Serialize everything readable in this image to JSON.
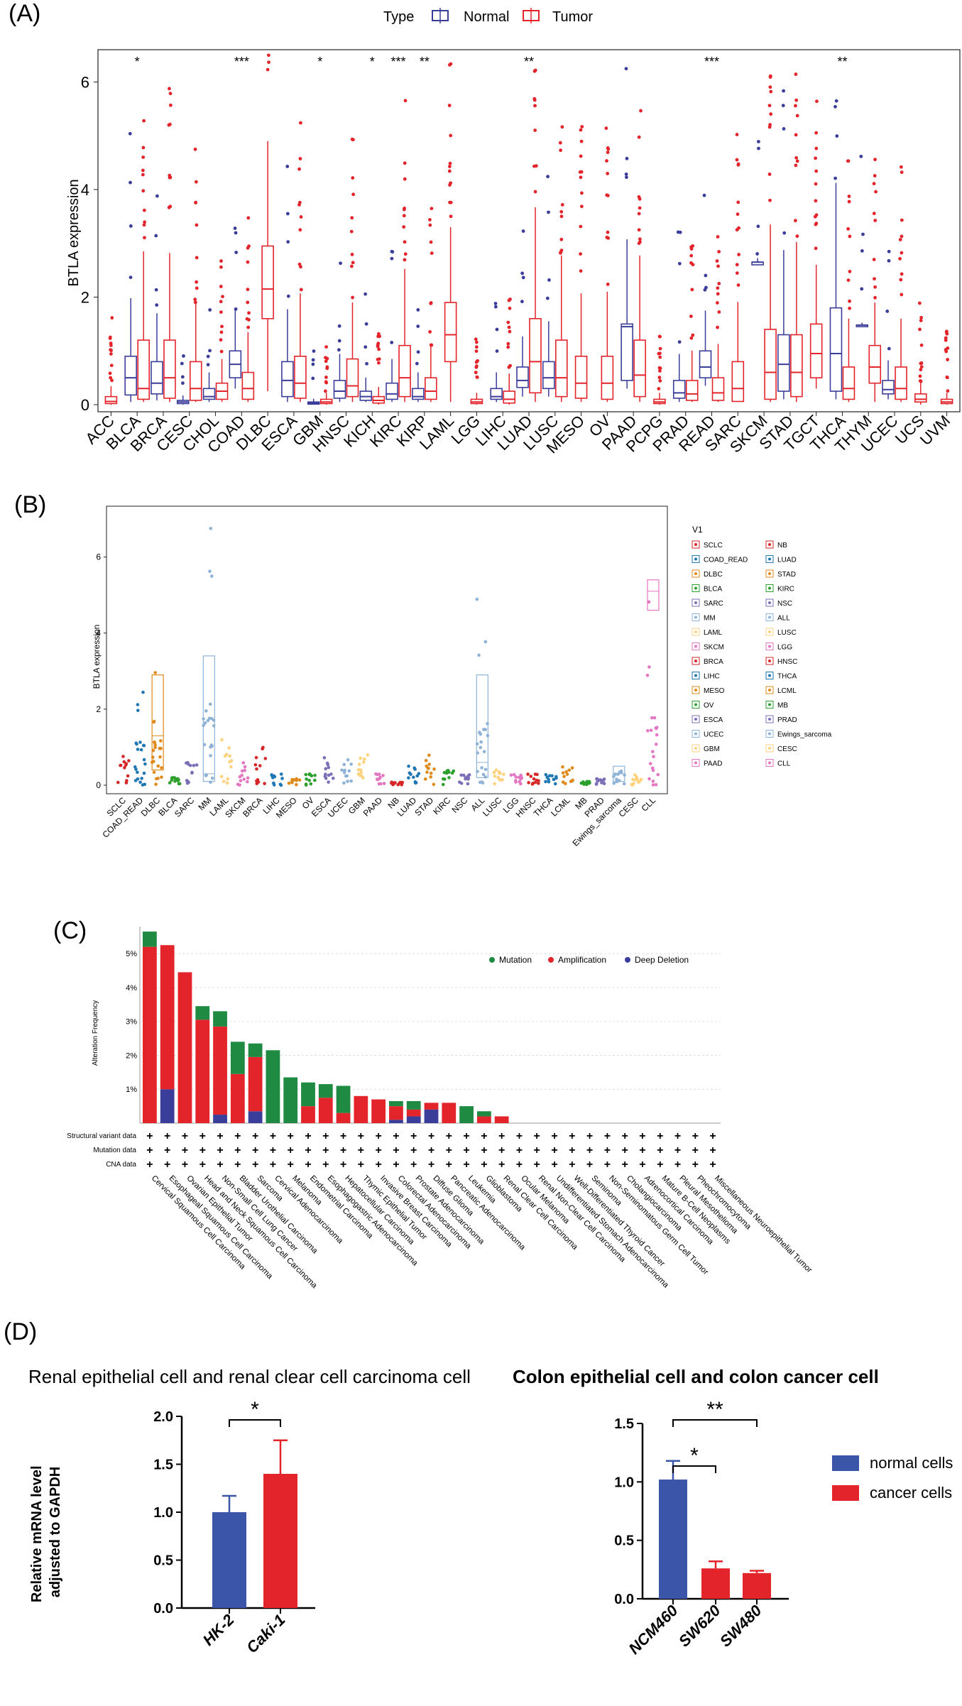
{
  "figure": {
    "panels": [
      "(A)",
      "(B)",
      "(C)",
      "(D)"
    ]
  },
  "chart_data": [
    {
      "panel": "(A)",
      "type": "box",
      "ylabel": "BTLA expression",
      "ylim": [
        0,
        6.6
      ],
      "yticks": [
        0,
        2,
        4,
        6
      ],
      "legend_title": "Type",
      "legend": [
        {
          "name": "Normal",
          "color": "#3b3d9a"
        },
        {
          "name": "Tumor",
          "color": "#e3242b"
        }
      ],
      "categories": [
        "ACC",
        "BLCA",
        "BRCA",
        "CESC",
        "CHOL",
        "COAD",
        "DLBC",
        "ESCA",
        "GBM",
        "HNSC",
        "KICH",
        "KIRC",
        "KIRP",
        "LAML",
        "LGG",
        "LIHC",
        "LUAD",
        "LUSC",
        "MESO",
        "OV",
        "PAAD",
        "PCPG",
        "PRAD",
        "READ",
        "SARC",
        "SKCM",
        "STAD",
        "TGCT",
        "THCA",
        "THYM",
        "UCEC",
        "UCS",
        "UVM"
      ],
      "significance": {
        "BLCA": "*",
        "COAD": "***",
        "GBM": "*",
        "KICH": "*",
        "KIRC": "***",
        "KIRP": "**",
        "LUAD": "**",
        "READ": "***",
        "THCA": "**"
      },
      "normal": {
        "BLCA": [
          0.05,
          0.18,
          0.5,
          0.9
        ],
        "BRCA": [
          0.08,
          0.2,
          0.4,
          0.8
        ],
        "CESC": [
          0.0,
          0.02,
          0.05,
          0.08
        ],
        "CHOL": [
          0.05,
          0.1,
          0.15,
          0.3
        ],
        "COAD": [
          0.3,
          0.5,
          0.75,
          1.0
        ],
        "ESCA": [
          0.05,
          0.15,
          0.45,
          0.8
        ],
        "GBM": [
          0.0,
          0.01,
          0.03,
          0.05
        ],
        "HNSC": [
          0.05,
          0.12,
          0.25,
          0.45
        ],
        "KICH": [
          0.05,
          0.08,
          0.15,
          0.25
        ],
        "KIRC": [
          0.05,
          0.1,
          0.2,
          0.4
        ],
        "KIRP": [
          0.05,
          0.1,
          0.15,
          0.3
        ],
        "LIHC": [
          0.05,
          0.1,
          0.15,
          0.3
        ],
        "LUAD": [
          0.15,
          0.32,
          0.45,
          0.7
        ],
        "LUSC": [
          0.15,
          0.3,
          0.5,
          0.8
        ],
        "PAAD": [
          0.3,
          0.45,
          1.45,
          1.5
        ],
        "PRAD": [
          0.05,
          0.12,
          0.22,
          0.45
        ],
        "READ": [
          0.35,
          0.5,
          0.7,
          1.0
        ],
        "SKCM": [
          2.6,
          2.6,
          2.65,
          2.65
        ],
        "STAD": [
          0.1,
          0.25,
          0.75,
          1.3
        ],
        "THCA": [
          0.1,
          0.25,
          0.95,
          1.8
        ],
        "THYM": [
          1.45,
          1.45,
          1.48,
          1.48
        ],
        "UCEC": [
          0.1,
          0.2,
          0.28,
          0.45
        ]
      },
      "tumor": {
        "ACC": [
          0.0,
          0.02,
          0.06,
          0.15
        ],
        "BLCA": [
          0.05,
          0.1,
          0.3,
          1.2
        ],
        "BRCA": [
          0.05,
          0.12,
          0.5,
          1.2
        ],
        "CESC": [
          0.05,
          0.08,
          0.3,
          0.8
        ],
        "CHOL": [
          0.05,
          0.1,
          0.25,
          0.4
        ],
        "COAD": [
          0.05,
          0.1,
          0.3,
          0.6
        ],
        "DLBC": [
          0.25,
          1.6,
          2.15,
          2.95,
          4.9
        ],
        "ESCA": [
          0.05,
          0.12,
          0.4,
          0.9
        ],
        "GBM": [
          0.0,
          0.02,
          0.05,
          0.1
        ],
        "HNSC": [
          0.05,
          0.15,
          0.35,
          0.85
        ],
        "KICH": [
          0.0,
          0.03,
          0.08,
          0.15
        ],
        "KIRC": [
          0.05,
          0.15,
          0.5,
          1.1
        ],
        "KIRP": [
          0.05,
          0.1,
          0.25,
          0.5
        ],
        "LAML": [
          0.05,
          0.8,
          1.3,
          1.9,
          3.3
        ],
        "LGG": [
          0.0,
          0.02,
          0.05,
          0.1
        ],
        "LIHC": [
          0.0,
          0.03,
          0.1,
          0.25
        ],
        "LUAD": [
          0.05,
          0.22,
          0.8,
          1.6
        ],
        "LUSC": [
          0.05,
          0.15,
          0.5,
          1.2
        ],
        "MESO": [
          0.05,
          0.12,
          0.4,
          0.9
        ],
        "OV": [
          0.05,
          0.1,
          0.4,
          0.9
        ],
        "PAAD": [
          0.05,
          0.15,
          0.55,
          1.2
        ],
        "PCPG": [
          0.0,
          0.02,
          0.05,
          0.1
        ],
        "PRAD": [
          0.05,
          0.08,
          0.2,
          0.45
        ],
        "READ": [
          0.05,
          0.08,
          0.22,
          0.5
        ],
        "SARC": [
          0.05,
          0.06,
          0.3,
          0.8
        ],
        "SKCM": [
          0.05,
          0.1,
          0.6,
          1.4
        ],
        "STAD": [
          0.05,
          0.15,
          0.6,
          1.3
        ],
        "TGCT": [
          0.3,
          0.5,
          0.95,
          1.5,
          2.6
        ],
        "THCA": [
          0.05,
          0.1,
          0.3,
          0.7
        ],
        "THYM": [
          0.05,
          0.4,
          0.7,
          1.1,
          1.9
        ],
        "UCEC": [
          0.05,
          0.1,
          0.3,
          0.7
        ],
        "UCS": [
          0.0,
          0.05,
          0.1,
          0.2
        ],
        "UVM": [
          0.0,
          0.02,
          0.05,
          0.1
        ]
      }
    },
    {
      "panel": "(B)",
      "type": "scatter",
      "ylabel": "BTLA expression",
      "ylim": [
        0,
        7
      ],
      "yticks": [
        0,
        2,
        4,
        6
      ],
      "legend_title": "V1",
      "categories": [
        "SCLC",
        "COAD_READ",
        "DLBC",
        "BLCA",
        "SARC",
        "MM",
        "LAML",
        "SKCM",
        "BRCA",
        "LIHC",
        "MESO",
        "OV",
        "ESCA",
        "UCEC",
        "GBM",
        "PAAD",
        "NB",
        "LUAD",
        "STAD",
        "KIRC",
        "NSC",
        "ALL",
        "LUSC",
        "LGG",
        "HNSC",
        "THCA",
        "LCML",
        "MB",
        "PRAD",
        "Ewings_sarcoma",
        "CESC",
        "CLL"
      ],
      "legend_col1": [
        "SCLC",
        "COAD_READ",
        "DLBC",
        "BLCA",
        "SARC",
        "MM",
        "LAML",
        "SKCM",
        "BRCA",
        "LIHC",
        "MESO",
        "OV",
        "ESCA",
        "UCEC",
        "GBM",
        "PAAD"
      ],
      "legend_col2": [
        "NB",
        "LUAD",
        "STAD",
        "KIRC",
        "NSC",
        "ALL",
        "LUSC",
        "LGG",
        "HNSC",
        "THCA",
        "LCML",
        "MB",
        "PRAD",
        "Ewings_sarcoma",
        "CESC",
        "CLL"
      ],
      "colors": [
        "#d62728",
        "#1f77b4",
        "#e08a1c",
        "#2ca02c",
        "#7b6fb8",
        "#8fb3d6",
        "#ffd27f",
        "#e377c2",
        "#d62728",
        "#1f77b4",
        "#e08a1c",
        "#2ca02c",
        "#7b6fb8",
        "#8fb3d6",
        "#ffd27f",
        "#e377c2",
        "#d62728",
        "#1f77b4",
        "#e08a1c",
        "#2ca02c",
        "#7b6fb8",
        "#8fb3d6",
        "#ffd27f",
        "#e377c2",
        "#d62728",
        "#1f77b4",
        "#e08a1c",
        "#2ca02c",
        "#7b6fb8",
        "#8fb3d6",
        "#ffd27f",
        "#e377c2"
      ],
      "spread_max": [
        0.8,
        2.6,
        3.0,
        0.2,
        0.7,
        6.8,
        1.5,
        0.6,
        1.0,
        0.3,
        0.2,
        0.3,
        0.8,
        0.7,
        0.8,
        0.3,
        0.1,
        0.5,
        0.8,
        0.4,
        0.3,
        5.1,
        0.4,
        0.3,
        0.3,
        0.3,
        0.5,
        0.1,
        0.2,
        0.4,
        0.3,
        5.5
      ],
      "boxes": {
        "DLBC": [
          0.0,
          0.4,
          1.3,
          2.9
        ],
        "MM": [
          0.1,
          0.3,
          3.4
        ],
        "CLL": [
          3.3,
          4.6,
          5.1,
          5.4
        ],
        "Ewings_sarcoma": [
          0.0,
          0.1,
          0.3,
          0.5
        ],
        "ALL": [
          0.05,
          0.2,
          0.6,
          2.9
        ]
      }
    },
    {
      "panel": "(C)",
      "type": "bar",
      "ylabel": "Alteration Frequency",
      "ylim": [
        0,
        5.8
      ],
      "yticks": [
        "1%",
        "2%",
        "3%",
        "4%",
        "5%"
      ],
      "legend": [
        {
          "name": "Mutation",
          "color": "#1e8a42"
        },
        {
          "name": "Amplification",
          "color": "#e3242b"
        },
        {
          "name": "Deep Deletion",
          "color": "#3b3d9a"
        }
      ],
      "row_labels": [
        "Structural variant data",
        "Mutation data",
        "CNA data"
      ],
      "categories": [
        "Cervical Squamous Cell Carcinoma",
        "Esophageal Squamous Cell Carcinoma",
        "Ovarian Epithelial Tumor",
        "Head and Neck Squamous Cell Carcinoma",
        "Non-Small Cell Lung Cancer",
        "Bladder Urothelial Carcinoma",
        "Sarcoma",
        "Cervical Adenocarcinoma",
        "Melanoma",
        "Endometrial Carcinoma",
        "Esophagogastric Adenocarcinoma",
        "Hepatocellular Carcinoma",
        "Thymic Epithelial Tumor",
        "Invasive Breast Carcinoma",
        "Colorectal Adenocarcinoma",
        "Prostate Adenocarcinoma",
        "Diffuse Glioma",
        "Pancreatic Adenocarcinoma",
        "Leukemia",
        "Glioblastoma",
        "Renal Clear Cell Carcinoma",
        "Ocular Melanoma",
        "Renal Non-Clear Cell Carcinoma",
        "Undifferentiated Stomach Adenocarcinoma",
        "Well-Differentiated Thyroid Cancer",
        "Seminoma",
        "Non-Seminomatous Germ Cell Tumor",
        "Cholangiocarcinoma",
        "Adrenocortical Carcinoma",
        "Mature B-Cell Neoplasms",
        "Pleural Mesothelioma",
        "Pheochromocytoma",
        "Miscellaneous Neuroepithelial Tumor"
      ],
      "series": [
        {
          "name": "Deep Deletion",
          "values": [
            0,
            1.0,
            0,
            0,
            0.25,
            0,
            0.35,
            0,
            0,
            0,
            0,
            0,
            0,
            0,
            0.1,
            0.2,
            0.4,
            0,
            0,
            0,
            0,
            0,
            0,
            0,
            0,
            0,
            0,
            0,
            0,
            0,
            0,
            0,
            0
          ]
        },
        {
          "name": "Amplification",
          "values": [
            5.2,
            4.25,
            4.45,
            3.05,
            2.6,
            1.45,
            1.6,
            0,
            0,
            0.5,
            0.75,
            0.3,
            0.8,
            0.7,
            0.4,
            0.2,
            0.2,
            0.6,
            0,
            0.2,
            0.2,
            0,
            0,
            0,
            0,
            0,
            0,
            0,
            0,
            0,
            0,
            0,
            0
          ]
        },
        {
          "name": "Mutation",
          "values": [
            0.45,
            0,
            0,
            0.4,
            0.45,
            0.95,
            0.4,
            2.15,
            1.35,
            0.7,
            0.4,
            0.8,
            0,
            0,
            0.15,
            0.25,
            0,
            0,
            0.5,
            0.15,
            0,
            0,
            0,
            0,
            0,
            0,
            0,
            0,
            0,
            0,
            0,
            0,
            0
          ]
        }
      ]
    },
    {
      "panel": "(D)",
      "type": "bar",
      "title": "Renal epithelial cell and renal clear cell carcinoma cell",
      "ylabel": "Relative mRNA level adjusted to GAPDH",
      "ylim": [
        0,
        2.0
      ],
      "yticks": [
        "0.0",
        "0.5",
        "1.0",
        "1.5",
        "2.0"
      ],
      "categories": [
        "HK-2",
        "Caki-1"
      ],
      "values": [
        1.0,
        1.4
      ],
      "errors": [
        0.17,
        0.35
      ],
      "colors": [
        "#3b56a8",
        "#e3242b"
      ],
      "significance": [
        {
          "from": 0,
          "to": 1,
          "label": "*"
        }
      ]
    },
    {
      "panel": "(D)",
      "type": "bar",
      "title": "Colon  epithelial cell and colon cancer cell",
      "ylim": [
        0,
        1.5
      ],
      "yticks": [
        "0.0",
        "0.5",
        "1.0",
        "1.5"
      ],
      "categories": [
        "NCM460",
        "SW620",
        "SW480"
      ],
      "values": [
        1.02,
        0.26,
        0.22
      ],
      "errors": [
        0.16,
        0.06,
        0.02
      ],
      "colors": [
        "#3b56a8",
        "#e3242b",
        "#e3242b"
      ],
      "legend": [
        {
          "name": "normal cells",
          "color": "#3b56a8"
        },
        {
          "name": "cancer cells",
          "color": "#e3242b"
        }
      ],
      "significance": [
        {
          "from": 0,
          "to": 1,
          "label": "*"
        },
        {
          "from": 0,
          "to": 2,
          "label": "**"
        }
      ]
    }
  ]
}
